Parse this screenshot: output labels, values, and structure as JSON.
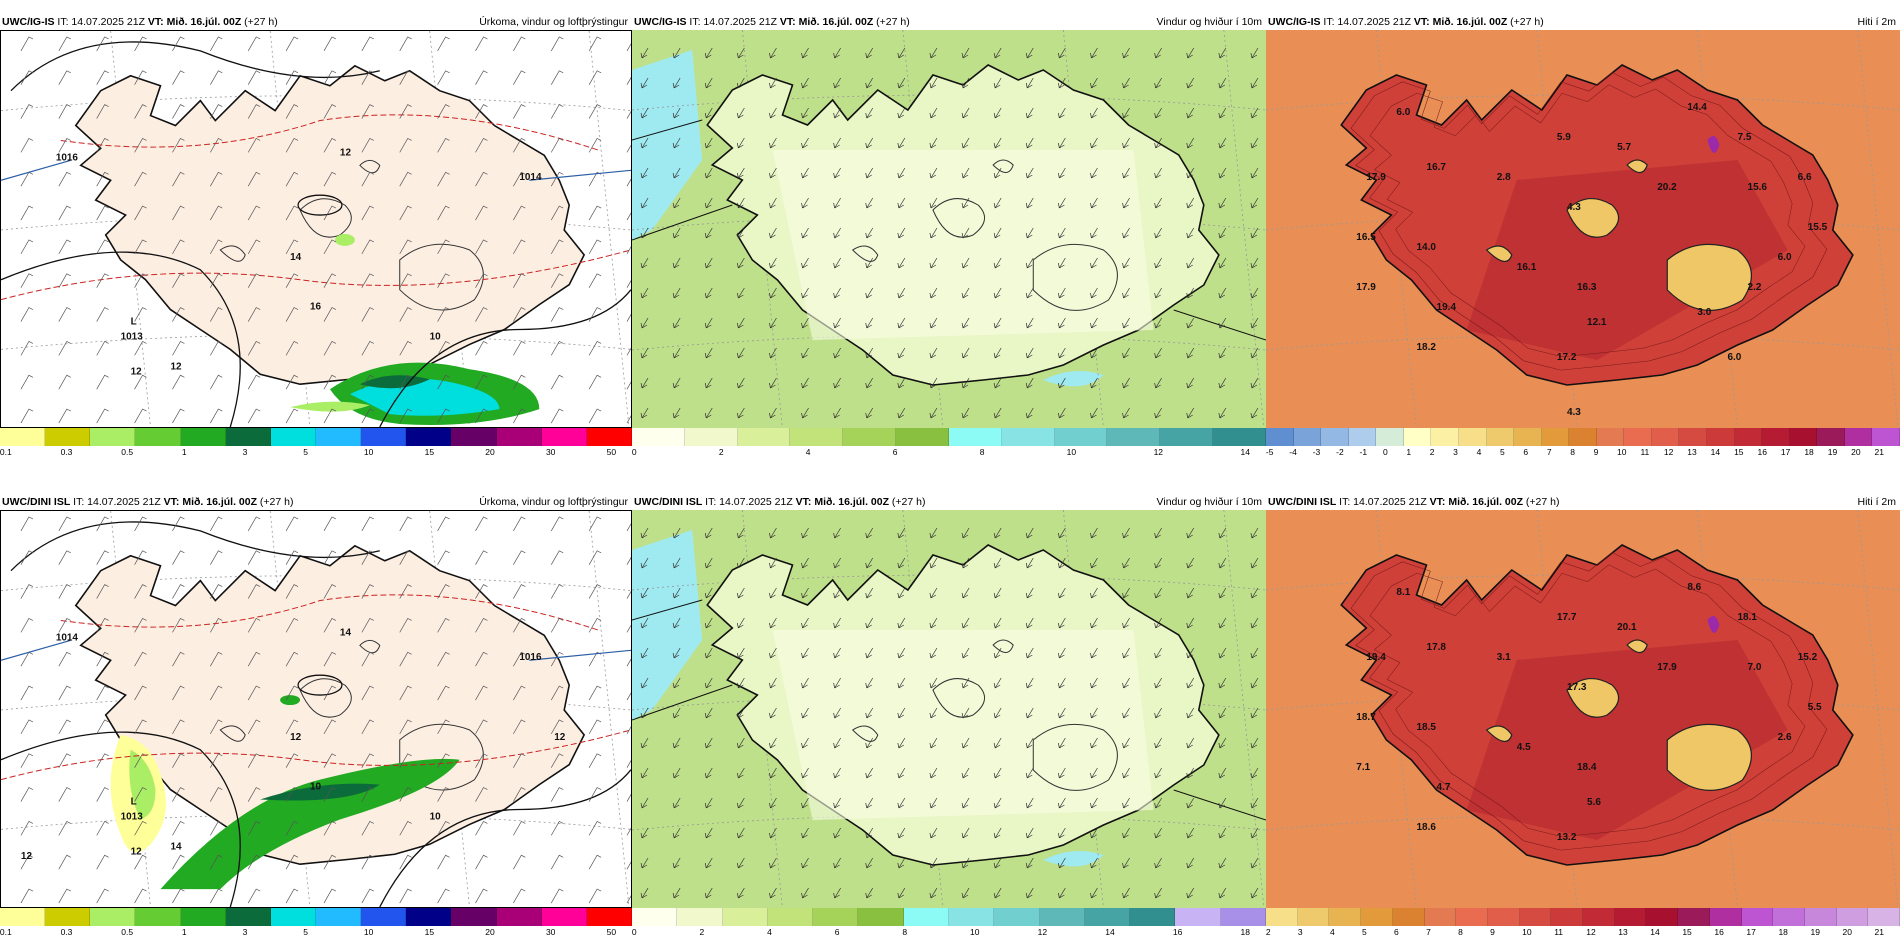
{
  "panels": [
    {
      "title_model": "UWC/IG-IS",
      "title_it": " IT: 14.07.2025 21Z ",
      "title_vt": "VT: Mið. 16.júl. 00Z",
      "title_lead": " (+27 h)",
      "title_right": "Úrkoma, vindur og loftþrýstingur",
      "colorbar_colors": [
        "#ffff99",
        "#cccc00",
        "#aaee66",
        "#66cc33",
        "#22aa22",
        "#0b6b3a",
        "#00dddd",
        "#22bbff",
        "#2255ee",
        "#000088",
        "#660066",
        "#aa0077",
        "#ff0099",
        "#ff0000"
      ],
      "colorbar_ticks": [
        "0.1",
        "0.3",
        "0.5",
        "1",
        "3",
        "5",
        "10",
        "15",
        "20",
        "30",
        "50"
      ],
      "labels": [
        "L",
        "1013",
        "1016",
        "1014",
        "12",
        "14",
        "12",
        "12",
        "16",
        "10"
      ]
    },
    {
      "title_model": "UWC/IG-IS",
      "title_it": " IT: 14.07.2025 21Z ",
      "title_vt": "VT: Mið. 16.júl. 00Z",
      "title_lead": " (+27 h)",
      "title_right": "Vindur og hviður í 10m",
      "colorbar_colors": [
        "#ffffee",
        "#f1f8cc",
        "#d9ef99",
        "#c2e27a",
        "#a5d35a",
        "#89c040",
        "#8dfbf5",
        "#88e4e4",
        "#72cfcf",
        "#5fb8b8",
        "#46a4a4",
        "#318f8f"
      ],
      "colorbar_ticks": [
        "0",
        "2",
        "4",
        "6",
        "8",
        "10",
        "12",
        "14"
      ],
      "labels": []
    },
    {
      "title_model": "UWC/IG-IS",
      "title_it": " IT: 14.07.2025 21Z ",
      "title_vt": "VT: Mið. 16.júl. 00Z",
      "title_lead": " (+27 h)",
      "title_right": "Hiti í 2m",
      "colorbar_colors": [
        "#5f8fd0",
        "#7aa3da",
        "#94b8e4",
        "#aecded",
        "#d5ecd9",
        "#ffffc6",
        "#fcf0a4",
        "#f6df88",
        "#efca6c",
        "#e8b451",
        "#e29a3b",
        "#db8230",
        "#e37a52",
        "#e96b50",
        "#e05e4a",
        "#d64b41",
        "#cc3a3a",
        "#c22a36",
        "#b51c33",
        "#a8102f",
        "#9a1a5a",
        "#b02fa0",
        "#bd55d2"
      ],
      "colorbar_ticks": [
        "-5",
        "-4",
        "-3",
        "-2",
        "-1",
        "0",
        "1",
        "2",
        "3",
        "4",
        "5",
        "6",
        "7",
        "8",
        "9",
        "10",
        "11",
        "12",
        "13",
        "14",
        "15",
        "16",
        "17",
        "18",
        "19",
        "20",
        "21"
      ],
      "labels": [
        "6.0",
        "17.9",
        "16.7",
        "16.5",
        "14.0",
        "17.9",
        "19.4",
        "18.2",
        "2.8",
        "5.9",
        "5.7",
        "4.3",
        "20.2",
        "14.4",
        "7.5",
        "15.6",
        "6.6",
        "15.5",
        "6.0",
        "16.1",
        "16.3",
        "12.1",
        "17.2",
        "4.3",
        "3.0",
        "2.2",
        "6.0"
      ]
    },
    {
      "title_model": "UWC/DINI ISL",
      "title_it": " IT: 14.07.2025 21Z ",
      "title_vt": "VT: Mið. 16.júl. 00Z",
      "title_lead": " (+27 h)",
      "title_right": "Úrkoma, vindur og loftþrýstingur",
      "colorbar_colors": [
        "#ffff99",
        "#cccc00",
        "#aaee66",
        "#66cc33",
        "#22aa22",
        "#0b6b3a",
        "#00dddd",
        "#22bbff",
        "#2255ee",
        "#000088",
        "#660066",
        "#aa0077",
        "#ff0099",
        "#ff0000"
      ],
      "colorbar_ticks": [
        "0.1",
        "0.3",
        "0.5",
        "1",
        "3",
        "5",
        "10",
        "15",
        "20",
        "30",
        "50"
      ],
      "labels": [
        "L",
        "1013",
        "1014",
        "1016",
        "14",
        "12",
        "14",
        "12",
        "10",
        "10",
        "12",
        "12"
      ]
    },
    {
      "title_model": "UWC/DINI ISL",
      "title_it": " IT: 14.07.2025 21Z ",
      "title_vt": "VT: Mið. 16.júl. 00Z",
      "title_lead": " (+27 h)",
      "title_right": "Vindur og hviður í 10m",
      "colorbar_colors": [
        "#ffffee",
        "#f1f8cc",
        "#d9ef99",
        "#c2e27a",
        "#a5d35a",
        "#89c040",
        "#8dfbf5",
        "#88e4e4",
        "#72cfcf",
        "#5fb8b8",
        "#46a4a4",
        "#318f8f",
        "#c8b4f4",
        "#a890e8"
      ],
      "colorbar_ticks": [
        "0",
        "2",
        "4",
        "6",
        "8",
        "10",
        "12",
        "14",
        "16",
        "18"
      ],
      "labels": []
    },
    {
      "title_model": "UWC/DINI ISL",
      "title_it": " IT: 14.07.2025 21Z ",
      "title_vt": "VT: Mið. 16.júl. 00Z",
      "title_lead": " (+27 h)",
      "title_right": "Hiti í 2m",
      "colorbar_colors": [
        "#f6df88",
        "#efca6c",
        "#e8b451",
        "#e29a3b",
        "#db8230",
        "#e37a52",
        "#e96b50",
        "#e05e4a",
        "#d64b41",
        "#cc3a3a",
        "#c22a36",
        "#b51c33",
        "#a8102f",
        "#9a1a5a",
        "#b02fa0",
        "#bd55d2",
        "#c070d8",
        "#c788dc",
        "#cf9ee0",
        "#d8b4e6"
      ],
      "colorbar_ticks": [
        "2",
        "3",
        "4",
        "5",
        "6",
        "7",
        "8",
        "9",
        "10",
        "11",
        "12",
        "13",
        "14",
        "15",
        "16",
        "17",
        "18",
        "19",
        "20",
        "21"
      ],
      "labels": [
        "8.1",
        "19.4",
        "17.8",
        "18.7",
        "18.5",
        "7.1",
        "4.7",
        "18.6",
        "3.1",
        "17.7",
        "20.1",
        "17.3",
        "17.9",
        "8.6",
        "18.1",
        "7.0",
        "15.2",
        "5.5",
        "2.6",
        "4.5",
        "18.4",
        "5.6",
        "13.2"
      ]
    }
  ]
}
